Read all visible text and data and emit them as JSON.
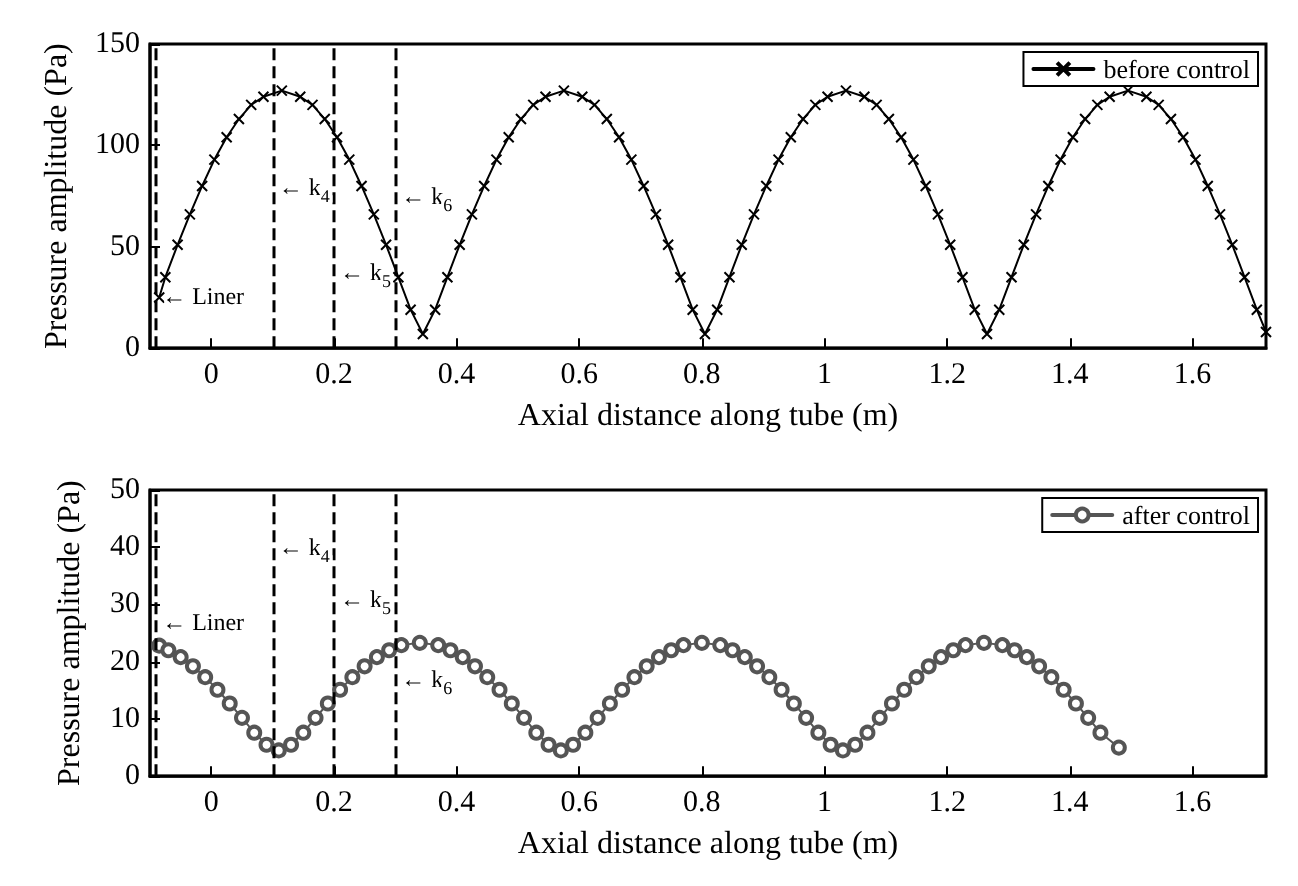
{
  "chart_data": [
    {
      "type": "line",
      "xlabel": "Axial distance along tube (m)",
      "ylabel": "Pressure amplitude (Pa)",
      "xlim": [
        -0.1,
        1.72
      ],
      "ylim": [
        0,
        150
      ],
      "xticks": [
        0,
        0.2,
        0.4,
        0.6,
        0.8,
        1,
        1.2,
        1.4,
        1.6
      ],
      "yticks": [
        0,
        50,
        100,
        150
      ],
      "grid": false,
      "legend": "top right",
      "marker": "cross",
      "line_style": "solid",
      "series": [
        {
          "name": "before control",
          "color": "#000000",
          "x": [
            -0.085,
            -0.075,
            -0.055,
            -0.035,
            -0.015,
            0.005,
            0.025,
            0.045,
            0.065,
            0.085,
            0.115,
            0.145,
            0.165,
            0.185,
            0.205,
            0.225,
            0.245,
            0.265,
            0.285,
            0.305,
            0.325,
            0.345,
            0.365,
            0.385,
            0.405,
            0.425,
            0.445,
            0.465,
            0.485,
            0.505,
            0.525,
            0.545,
            0.575,
            0.605,
            0.625,
            0.645,
            0.665,
            0.685,
            0.705,
            0.725,
            0.745,
            0.765,
            0.785,
            0.805,
            0.825,
            0.845,
            0.865,
            0.885,
            0.905,
            0.925,
            0.945,
            0.965,
            0.985,
            1.005,
            1.035,
            1.065,
            1.085,
            1.105,
            1.125,
            1.145,
            1.165,
            1.185,
            1.205,
            1.225,
            1.245,
            1.265,
            1.285,
            1.305,
            1.325,
            1.345,
            1.365,
            1.385,
            1.405,
            1.425,
            1.445,
            1.465,
            1.495,
            1.525,
            1.545,
            1.565,
            1.585,
            1.605,
            1.625,
            1.645,
            1.665,
            1.685,
            1.705,
            1.72
          ],
          "values": [
            25,
            35,
            51,
            66,
            80,
            93,
            104,
            113,
            120,
            124,
            127,
            124,
            120,
            113,
            104,
            93,
            80,
            66,
            51,
            35,
            19,
            7,
            19,
            35,
            51,
            66,
            80,
            93,
            104,
            113,
            120,
            124,
            127,
            124,
            120,
            113,
            104,
            93,
            80,
            66,
            51,
            35,
            19,
            7,
            19,
            35,
            51,
            66,
            80,
            93,
            104,
            113,
            120,
            124,
            127,
            124,
            120,
            113,
            104,
            93,
            80,
            66,
            51,
            35,
            19,
            7,
            19,
            35,
            51,
            66,
            80,
            93,
            104,
            113,
            120,
            124,
            127,
            124,
            120,
            113,
            104,
            93,
            80,
            66,
            51,
            35,
            19,
            8
          ]
        }
      ],
      "ref_lines": [
        {
          "axis": "x",
          "value": -0.09,
          "color": "#000000",
          "line_style": "dashed",
          "label": "← Liner"
        },
        {
          "axis": "x",
          "value": 0.1,
          "color": "#000000",
          "line_style": "dashed",
          "label": "← k$_{4}$"
        },
        {
          "axis": "x",
          "value": 0.2,
          "color": "#000000",
          "line_style": "dashed",
          "label": "← k$_{5}$"
        },
        {
          "axis": "x",
          "value": 0.3,
          "color": "#000000",
          "line_style": "dashed",
          "label": "← k$_{6}$"
        }
      ]
    },
    {
      "type": "line",
      "xlabel": "Axial distance along tube (m)",
      "ylabel": "Pressure amplitude (Pa)",
      "xlim": [
        -0.1,
        1.72
      ],
      "ylim": [
        0,
        50
      ],
      "xticks": [
        0,
        0.2,
        0.4,
        0.6,
        0.8,
        1,
        1.2,
        1.4,
        1.6
      ],
      "yticks": [
        0,
        10,
        20,
        30,
        40,
        50
      ],
      "grid": false,
      "legend": "top right",
      "marker": "circle",
      "line_style": "solid",
      "series": [
        {
          "name": "after control",
          "color": "#555555",
          "x": [
            -0.085,
            -0.07,
            -0.05,
            -0.03,
            -0.01,
            0.01,
            0.03,
            0.05,
            0.07,
            0.09,
            0.11,
            0.13,
            0.15,
            0.17,
            0.19,
            0.21,
            0.23,
            0.25,
            0.27,
            0.29,
            0.31,
            0.34,
            0.37,
            0.39,
            0.41,
            0.43,
            0.45,
            0.47,
            0.49,
            0.51,
            0.53,
            0.55,
            0.57,
            0.59,
            0.61,
            0.63,
            0.65,
            0.67,
            0.69,
            0.71,
            0.73,
            0.75,
            0.77,
            0.8,
            0.83,
            0.85,
            0.87,
            0.89,
            0.91,
            0.93,
            0.95,
            0.97,
            0.99,
            1.01,
            1.03,
            1.05,
            1.07,
            1.09,
            1.11,
            1.13,
            1.15,
            1.17,
            1.19,
            1.21,
            1.23,
            1.26,
            1.29,
            1.31,
            1.33,
            1.35,
            1.37,
            1.39,
            1.41,
            1.43,
            1.45,
            1.48
          ],
          "values": [
            22.8,
            22,
            20.8,
            19.2,
            17.3,
            15.1,
            12.7,
            10.2,
            7.6,
            5.5,
            4.5,
            5.5,
            7.6,
            10.2,
            12.7,
            15.1,
            17.3,
            19.2,
            20.8,
            22,
            22.9,
            23.3,
            22.9,
            22,
            20.8,
            19.2,
            17.3,
            15.1,
            12.7,
            10.2,
            7.6,
            5.5,
            4.5,
            5.5,
            7.6,
            10.2,
            12.7,
            15.1,
            17.3,
            19.2,
            20.8,
            22,
            22.9,
            23.3,
            22.9,
            22,
            20.8,
            19.2,
            17.3,
            15.1,
            12.7,
            10.2,
            7.6,
            5.5,
            4.5,
            5.5,
            7.6,
            10.2,
            12.7,
            15.1,
            17.3,
            19.2,
            20.8,
            22,
            22.9,
            23.3,
            22.9,
            22,
            20.8,
            19.2,
            17.3,
            15.1,
            12.7,
            10.2,
            7.6,
            5
          ]
        }
      ],
      "ref_lines": [
        {
          "axis": "x",
          "value": -0.09,
          "color": "#000000",
          "line_style": "dashed",
          "label": "← Liner"
        },
        {
          "axis": "x",
          "value": 0.1,
          "color": "#000000",
          "line_style": "dashed",
          "label": "← k$_{4}$"
        },
        {
          "axis": "x",
          "value": 0.2,
          "color": "#000000",
          "line_style": "dashed",
          "label": "← k$_{5}$"
        },
        {
          "axis": "x",
          "value": 0.3,
          "color": "#000000",
          "line_style": "dashed",
          "label": "← k$_{6}$"
        }
      ]
    }
  ]
}
